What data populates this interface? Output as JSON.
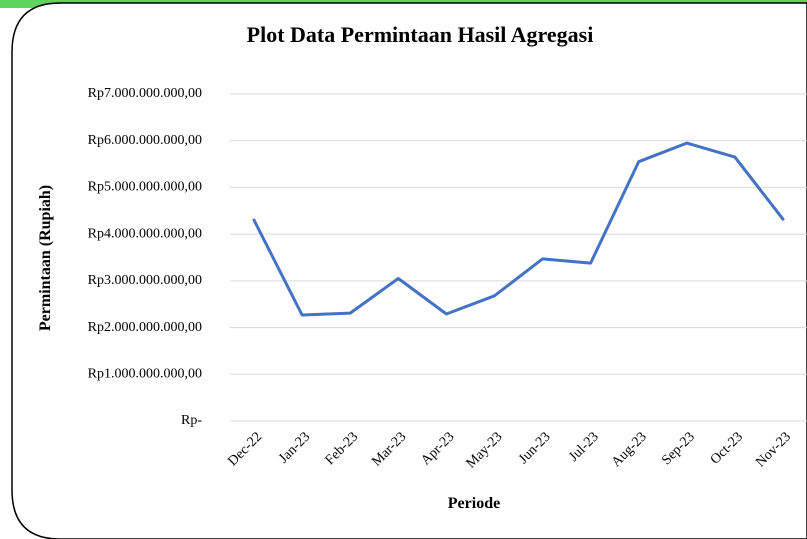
{
  "chart_data": {
    "type": "line",
    "title": "Plot Data Permintaan Hasil Agregasi",
    "x_label": "Periode",
    "y_label": "Permintaan (Rupiah)",
    "categories": [
      "Dec-22",
      "Jan-23",
      "Feb-23",
      "Mar-23",
      "Apr-23",
      "May-23",
      "Jun-23",
      "Jul-23",
      "Aug-23",
      "Sep-23",
      "Oct-23",
      "Nov-23"
    ],
    "series": [
      {
        "name": "Permintaan",
        "color": "#4472c4",
        "values": [
          4300000000,
          2270000000,
          2310000000,
          3050000000,
          2290000000,
          2680000000,
          3470000000,
          3380000000,
          5550000000,
          5950000000,
          5650000000,
          4320000000
        ]
      }
    ],
    "ylim": [
      0,
      7000000000
    ],
    "yticks": [
      {
        "value": 0,
        "label": "Rp-"
      },
      {
        "value": 1000000000,
        "label": "Rp1.000.000.000,00"
      },
      {
        "value": 2000000000,
        "label": "Rp2.000.000.000,00"
      },
      {
        "value": 3000000000,
        "label": "Rp3.000.000.000,00"
      },
      {
        "value": 4000000000,
        "label": "Rp4.000.000.000,00"
      },
      {
        "value": 5000000000,
        "label": "Rp5.000.000.000,00"
      },
      {
        "value": 6000000000,
        "label": "Rp6.000.000.000,00"
      },
      {
        "value": 7000000000,
        "label": "Rp7.000.000.000,00"
      }
    ],
    "grid": true
  }
}
